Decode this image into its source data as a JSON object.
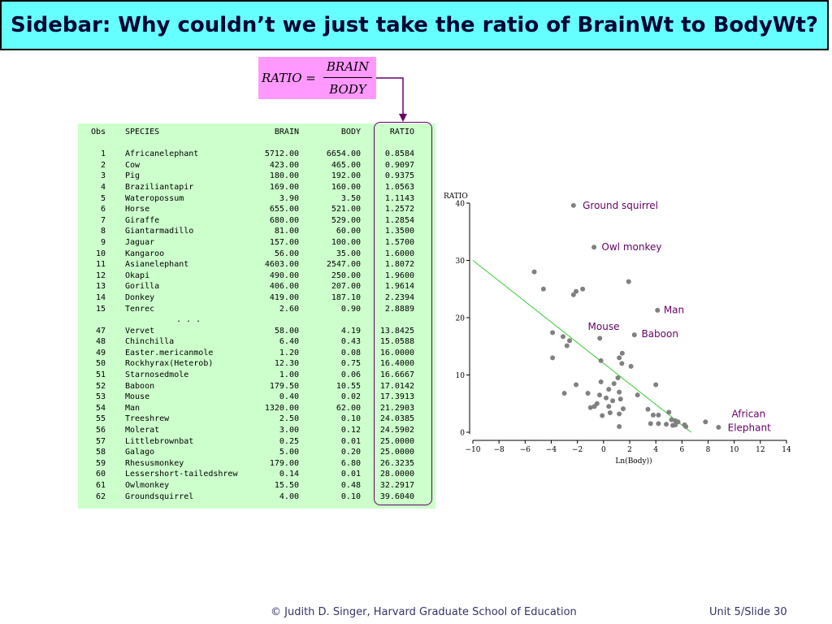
{
  "slide": {
    "title": "Sidebar: Why couldn’t we just take the ratio of BrainWt to BodyWt?",
    "footer_credit": "© Judith D. Singer, Harvard Graduate School of Education",
    "footer_slide": "Unit 5/Slide 30"
  },
  "formula": {
    "lhs": "RATIO =",
    "numerator": "BRAIN",
    "denominator": "BODY"
  },
  "table": {
    "headers": [
      "Obs",
      "SPECIES",
      "BRAIN",
      "BODY",
      "RATIO"
    ],
    "top_rows": [
      [
        "1",
        "Africanelephant",
        "5712.00",
        "6654.00",
        "0.8584"
      ],
      [
        "2",
        "Cow",
        "423.00",
        "465.00",
        "0.9097"
      ],
      [
        "3",
        "Pig",
        "180.00",
        "192.00",
        "0.9375"
      ],
      [
        "4",
        "Braziliantapir",
        "169.00",
        "160.00",
        "1.0563"
      ],
      [
        "5",
        "Wateropossum",
        "3.90",
        "3.50",
        "1.1143"
      ],
      [
        "6",
        "Horse",
        "655.00",
        "521.00",
        "1.2572"
      ],
      [
        "7",
        "Giraffe",
        "680.00",
        "529.00",
        "1.2854"
      ],
      [
        "8",
        "Giantarmadillo",
        "81.00",
        "60.00",
        "1.3500"
      ],
      [
        "9",
        "Jaguar",
        "157.00",
        "100.00",
        "1.5700"
      ],
      [
        "10",
        "Kangaroo",
        "56.00",
        "35.00",
        "1.6000"
      ],
      [
        "11",
        "Asianelephant",
        "4603.00",
        "2547.00",
        "1.8072"
      ],
      [
        "12",
        "Okapi",
        "490.00",
        "250.00",
        "1.9600"
      ],
      [
        "13",
        "Gorilla",
        "406.00",
        "207.00",
        "1.9614"
      ],
      [
        "14",
        "Donkey",
        "419.00",
        "187.10",
        "2.2394"
      ],
      [
        "15",
        "Tenrec",
        "2.60",
        "0.90",
        "2.8889"
      ]
    ],
    "ellipsis": ". . .",
    "bottom_rows": [
      [
        "47",
        "Vervet",
        "58.00",
        "4.19",
        "13.8425"
      ],
      [
        "48",
        "Chinchilla",
        "6.40",
        "0.43",
        "15.0588"
      ],
      [
        "49",
        "Easter.mericanmole",
        "1.20",
        "0.08",
        "16.0000"
      ],
      [
        "50",
        "Rockhyrax(Heterob)",
        "12.30",
        "0.75",
        "16.4000"
      ],
      [
        "51",
        "Starnosedmole",
        "1.00",
        "0.06",
        "16.6667"
      ],
      [
        "52",
        "Baboon",
        "179.50",
        "10.55",
        "17.0142"
      ],
      [
        "53",
        "Mouse",
        "0.40",
        "0.02",
        "17.3913"
      ],
      [
        "54",
        "Man",
        "1320.00",
        "62.00",
        "21.2903"
      ],
      [
        "55",
        "Treeshrew",
        "2.50",
        "0.10",
        "24.0385"
      ],
      [
        "56",
        "Molerat",
        "3.00",
        "0.12",
        "24.5902"
      ],
      [
        "57",
        "Littlebrownbat",
        "0.25",
        "0.01",
        "25.0000"
      ],
      [
        "58",
        "Galago",
        "5.00",
        "0.20",
        "25.0000"
      ],
      [
        "59",
        "Rhesusmonkey",
        "179.00",
        "6.80",
        "26.3235"
      ],
      [
        "60",
        "Lessershort-tailedshrew",
        "0.14",
        "0.01",
        "28.0000"
      ],
      [
        "61",
        "Owlmonkey",
        "15.50",
        "0.48",
        "32.2917"
      ],
      [
        "62",
        "Groundsquirrel",
        "4.00",
        "0.10",
        "39.6040"
      ]
    ]
  },
  "chart_data": {
    "type": "scatter",
    "xlabel": "Ln(Body))",
    "ylabel": "RATIO",
    "xlim": [
      -10,
      14
    ],
    "ylim": [
      0,
      40
    ],
    "xticks": [
      -10,
      -8,
      -6,
      -4,
      -2,
      0,
      2,
      4,
      6,
      8,
      10,
      12,
      14
    ],
    "yticks": [
      0,
      10,
      20,
      30,
      40
    ],
    "xtick_labels": [
      "−10",
      "−8",
      "−6",
      "−4",
      "−2",
      "0",
      "2",
      "4",
      "6",
      "8",
      "10",
      "12",
      "14"
    ],
    "ytick_labels": [
      "0",
      "10",
      "20",
      "30",
      "40"
    ],
    "points": [
      [
        -2.3,
        39.6
      ],
      [
        -0.73,
        32.3
      ],
      [
        -5.3,
        28.0
      ],
      [
        -4.6,
        25.0
      ],
      [
        -2.1,
        24.6
      ],
      [
        -2.3,
        24.0
      ],
      [
        -1.6,
        25.0
      ],
      [
        1.92,
        26.3
      ],
      [
        4.13,
        21.3
      ],
      [
        -3.9,
        17.4
      ],
      [
        2.36,
        17.0
      ],
      [
        -3.1,
        16.7
      ],
      [
        -2.6,
        16.0
      ],
      [
        -2.8,
        15.1
      ],
      [
        1.43,
        13.8
      ],
      [
        1.2,
        13.0
      ],
      [
        -0.29,
        16.4
      ],
      [
        -3.9,
        13.0
      ],
      [
        -0.2,
        12.5
      ],
      [
        2.1,
        11.5
      ],
      [
        1.4,
        12.0
      ],
      [
        1.1,
        9.5
      ],
      [
        -0.2,
        8.8
      ],
      [
        0.8,
        8.5
      ],
      [
        -2.1,
        8.3
      ],
      [
        4.0,
        8.3
      ],
      [
        0.4,
        7.5
      ],
      [
        -1.2,
        6.8
      ],
      [
        -3.0,
        6.8
      ],
      [
        1.2,
        7.0
      ],
      [
        2.6,
        6.5
      ],
      [
        -0.3,
        6.5
      ],
      [
        0.2,
        6.0
      ],
      [
        -0.5,
        5.0
      ],
      [
        0.7,
        5.5
      ],
      [
        1.3,
        5.8
      ],
      [
        -0.7,
        4.5
      ],
      [
        0.4,
        4.5
      ],
      [
        -1.0,
        4.3
      ],
      [
        1.5,
        4.1
      ],
      [
        0.5,
        3.4
      ],
      [
        3.4,
        4.0
      ],
      [
        4.2,
        3.0
      ],
      [
        5.0,
        3.5
      ],
      [
        1.2,
        3.2
      ],
      [
        3.8,
        3.0
      ],
      [
        -0.1,
        2.9
      ],
      [
        5.2,
        2.2
      ],
      [
        5.5,
        2.0
      ],
      [
        3.6,
        1.5
      ],
      [
        4.2,
        1.5
      ],
      [
        4.8,
        1.4
      ],
      [
        5.3,
        1.2
      ],
      [
        5.5,
        1.3
      ],
      [
        6.2,
        1.3
      ],
      [
        6.3,
        1.0
      ],
      [
        7.8,
        1.8
      ],
      [
        8.8,
        0.86
      ],
      [
        1.2,
        1.0
      ],
      [
        5.7,
        1.8
      ]
    ],
    "fit_line": {
      "x": [
        -10,
        6.7
      ],
      "y": [
        30,
        0
      ],
      "color": "#33cc33"
    },
    "point_color": "#808080",
    "annotations": [
      {
        "text": "Ground squirrel",
        "x": -1.6,
        "y": 39.0,
        "color": "#660066"
      },
      {
        "text": "Owl monkey",
        "x": -0.15,
        "y": 31.8,
        "color": "#660066"
      },
      {
        "text": "Man",
        "x": 4.6,
        "y": 20.8,
        "color": "#660066"
      },
      {
        "text": "Mouse",
        "x": -1.2,
        "y": 17.9,
        "color": "#660066"
      },
      {
        "text": "Baboon",
        "x": 2.9,
        "y": 16.6,
        "color": "#660066"
      },
      {
        "text": "African",
        "x": 9.8,
        "y": 2.6,
        "color": "#660066"
      },
      {
        "text": "Elephant",
        "x": 9.5,
        "y": 0.2,
        "color": "#660066"
      }
    ]
  }
}
